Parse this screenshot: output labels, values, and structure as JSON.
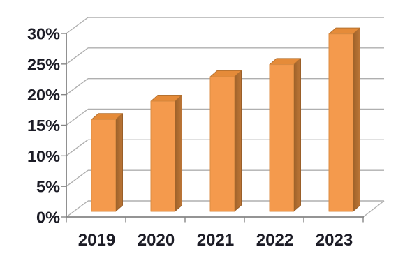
{
  "chart_data": {
    "type": "bar",
    "variant": "3d-column",
    "title": "",
    "xlabel": "",
    "ylabel": "",
    "categories": [
      "2019",
      "2020",
      "2021",
      "2022",
      "2023"
    ],
    "values": [
      15,
      18,
      22,
      24,
      29
    ],
    "unit": "%",
    "ylim": [
      0,
      30
    ],
    "ytick_step": 5,
    "ytick_labels": [
      "0%",
      "5%",
      "10%",
      "15%",
      "20%",
      "25%",
      "30%"
    ],
    "grid": true,
    "legend": false,
    "colors": {
      "background": "#ffffff",
      "bar_front": "#F49A4D",
      "bar_top": "#E58B39",
      "bar_side_dark": "#9D6129",
      "bar_side_light": "#BD7637",
      "bar_edge_front": "#DD8E44",
      "bar_edge_top": "#B5712F",
      "bar_edge_side": "#9A5F29",
      "gridline": "#AFAFAF",
      "axis": "#858585",
      "label": "#1c1c26"
    }
  }
}
